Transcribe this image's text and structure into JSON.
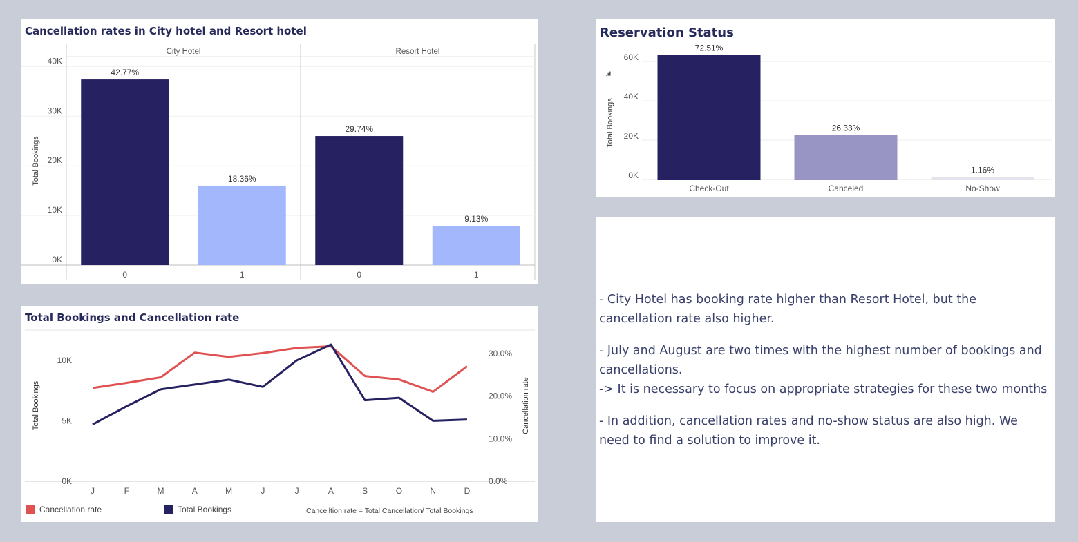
{
  "panels": {
    "cancel_by_hotel": {
      "title": "Cancellation rates in City hotel and Resort hotel"
    },
    "monthly": {
      "title": "Total Bookings and Cancellation rate",
      "legend": [
        {
          "label": "Cancellation rate",
          "color": "#e05252"
        },
        {
          "label": "Total Bookings",
          "color": "#262262"
        }
      ],
      "note": "Cancelltion rate = Total Cancellation/ Total Bookings"
    },
    "status": {
      "title": "Reservation Status",
      "sort_icon": "sort-descending-icon"
    },
    "notes": {
      "paragraphs": [
        [
          "- City Hotel has booking rate higher than Resort Hotel, but the cancellation rate also higher."
        ],
        [
          "- July and August are two times with the highest number of bookings and cancellations.",
          "-> It is necessary to focus on appropriate strategies for these two months"
        ],
        [
          "- In addition, cancellation rates and no-show status are also high. We need to find a solution to improve it."
        ]
      ]
    }
  },
  "chart_data": [
    {
      "type": "bar",
      "title": "Cancellation rates in City hotel and Resort hotel",
      "ylabel": "Total Bookings",
      "ylim": [
        0,
        42000
      ],
      "yticks": [
        0,
        10000,
        20000,
        30000,
        40000
      ],
      "ytick_labels": [
        "0K",
        "10K",
        "20K",
        "30K",
        "40K"
      ],
      "grid": true,
      "panels": [
        {
          "name": "City Hotel",
          "categories": [
            "0",
            "1"
          ],
          "values": [
            37400,
            16000
          ],
          "labels": [
            "42.77%",
            "18.36%"
          ],
          "colors": [
            "#262262",
            "#a3b7fc"
          ]
        },
        {
          "name": "Resort Hotel",
          "categories": [
            "0",
            "1"
          ],
          "values": [
            26000,
            7900
          ],
          "labels": [
            "29.74%",
            "9.13%"
          ],
          "colors": [
            "#262262",
            "#a3b7fc"
          ]
        }
      ]
    },
    {
      "type": "line",
      "title": "Total Bookings and Cancellation rate",
      "categories": [
        "J",
        "F",
        "M",
        "A",
        "M",
        "J",
        "J",
        "A",
        "S",
        "O",
        "N",
        "D"
      ],
      "series": [
        {
          "name": "Total Bookings",
          "axis": "left",
          "color": "#262262",
          "values": [
            4700,
            6200,
            7600,
            8000,
            8400,
            7800,
            10000,
            11300,
            6700,
            6900,
            5000,
            5100
          ]
        },
        {
          "name": "Cancellation rate",
          "axis": "right",
          "color": "#e05252",
          "values": [
            0.219,
            0.231,
            0.244,
            0.302,
            0.292,
            0.301,
            0.313,
            0.317,
            0.247,
            0.239,
            0.21,
            0.27
          ]
        }
      ],
      "left_axis": {
        "label": "Total Bookings",
        "range": [
          0,
          12500
        ],
        "ticks": [
          0,
          5000,
          10000
        ],
        "tick_labels": [
          "0K",
          "5K",
          "10K"
        ]
      },
      "right_axis": {
        "label": "Cancellation rate",
        "range": [
          0,
          0.355
        ],
        "ticks": [
          0,
          0.1,
          0.2,
          0.3
        ],
        "tick_labels": [
          "0.0%",
          "10.0%",
          "20.0%",
          "30.0%"
        ]
      },
      "legend": "bottom-left",
      "grid": false
    },
    {
      "type": "bar",
      "title": "Reservation Status",
      "ylabel": "Total Bookings",
      "categories": [
        "Check-Out",
        "Canceled",
        "No-Show"
      ],
      "values": [
        63400,
        22700,
        1200
      ],
      "labels": [
        "72.51%",
        "26.33%",
        "1.16%"
      ],
      "colors": [
        "#262262",
        "#9894c4",
        "#e4e4ee"
      ],
      "ylim": [
        0,
        66000
      ],
      "yticks": [
        0,
        20000,
        40000,
        60000
      ],
      "ytick_labels": [
        "0K",
        "20K",
        "40K",
        "60K"
      ],
      "grid": true
    }
  ]
}
